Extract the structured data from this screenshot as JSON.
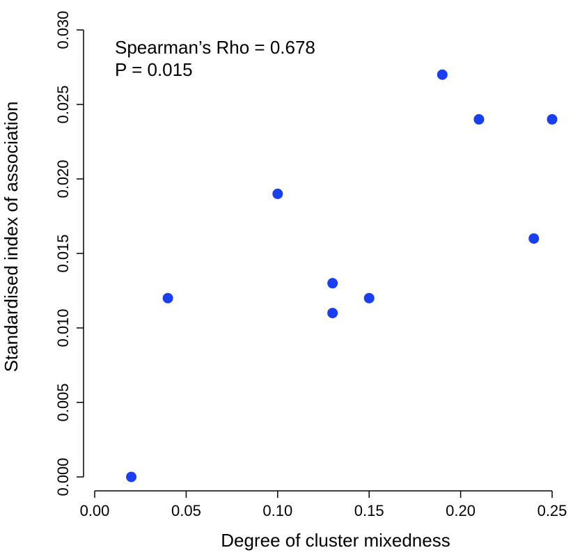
{
  "chart_data": {
    "type": "scatter",
    "title": "",
    "xlabel": "Degree of cluster mixedness",
    "ylabel": "Standardised index of association",
    "xlim": [
      0.0,
      0.25
    ],
    "ylim": [
      0.0,
      0.03
    ],
    "xticks": [
      "0.00",
      "0.05",
      "0.10",
      "0.15",
      "0.20",
      "0.25"
    ],
    "yticks": [
      "0.000",
      "0.005",
      "0.010",
      "0.015",
      "0.020",
      "0.025",
      "0.030"
    ],
    "grid": false,
    "point_color": "#1a3ff0",
    "annotations": [
      "Spearman’s Rho = 0.678",
      "P = 0.015"
    ],
    "points": [
      {
        "x": 0.02,
        "y": 0.0
      },
      {
        "x": 0.04,
        "y": 0.012
      },
      {
        "x": 0.1,
        "y": 0.019
      },
      {
        "x": 0.13,
        "y": 0.013
      },
      {
        "x": 0.13,
        "y": 0.011
      },
      {
        "x": 0.15,
        "y": 0.012
      },
      {
        "x": 0.19,
        "y": 0.027
      },
      {
        "x": 0.21,
        "y": 0.024
      },
      {
        "x": 0.24,
        "y": 0.016
      },
      {
        "x": 0.25,
        "y": 0.024
      }
    ]
  }
}
